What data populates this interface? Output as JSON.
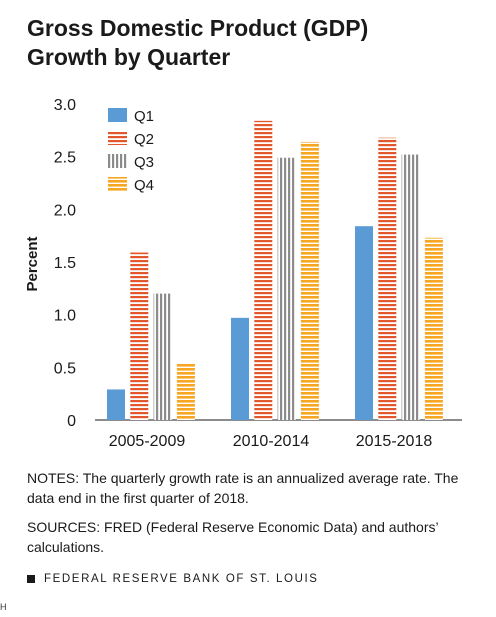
{
  "title_line1": "Gross Domestic Product (GDP)",
  "title_line2": "Growth by Quarter",
  "notes": "NOTES: The quarterly growth rate is an annualized average rate. The data end in the first quarter of 2018.",
  "sources": "SOURCES: FRED (Federal Reserve Economic Data) and authors’ calculations.",
  "footer": "FEDERAL RESERVE BANK OF ST. LOUIS",
  "corner_mark": "H",
  "colors": {
    "Q1": "#5b9bd5",
    "Q2": "#e2572b",
    "Q3": "#8c8c8c",
    "Q4": "#f6a623"
  },
  "chart_data": {
    "type": "bar",
    "title": "Gross Domestic Product (GDP) Growth by Quarter",
    "xlabel": "",
    "ylabel": "Percent",
    "ylim": [
      0,
      3.0
    ],
    "yticks": [
      "0",
      "0.5",
      "1.0",
      "1.5",
      "2.0",
      "2.5",
      "3.0"
    ],
    "ytick_values": [
      0,
      0.5,
      1.0,
      1.5,
      2.0,
      2.5,
      3.0
    ],
    "categories": [
      "2005-2009",
      "2010-2014",
      "2015-2018"
    ],
    "grid": false,
    "legend": "top-left",
    "series": [
      {
        "name": "Q1",
        "values": [
          0.29,
          0.97,
          1.84
        ],
        "pattern": "solid"
      },
      {
        "name": "Q2",
        "values": [
          1.59,
          2.84,
          2.68
        ],
        "pattern": "horizontal-stripes"
      },
      {
        "name": "Q3",
        "values": [
          1.2,
          2.49,
          2.52
        ],
        "pattern": "vertical-stripes"
      },
      {
        "name": "Q4",
        "values": [
          0.54,
          2.64,
          1.73
        ],
        "pattern": "horizontal-stripes"
      }
    ]
  }
}
